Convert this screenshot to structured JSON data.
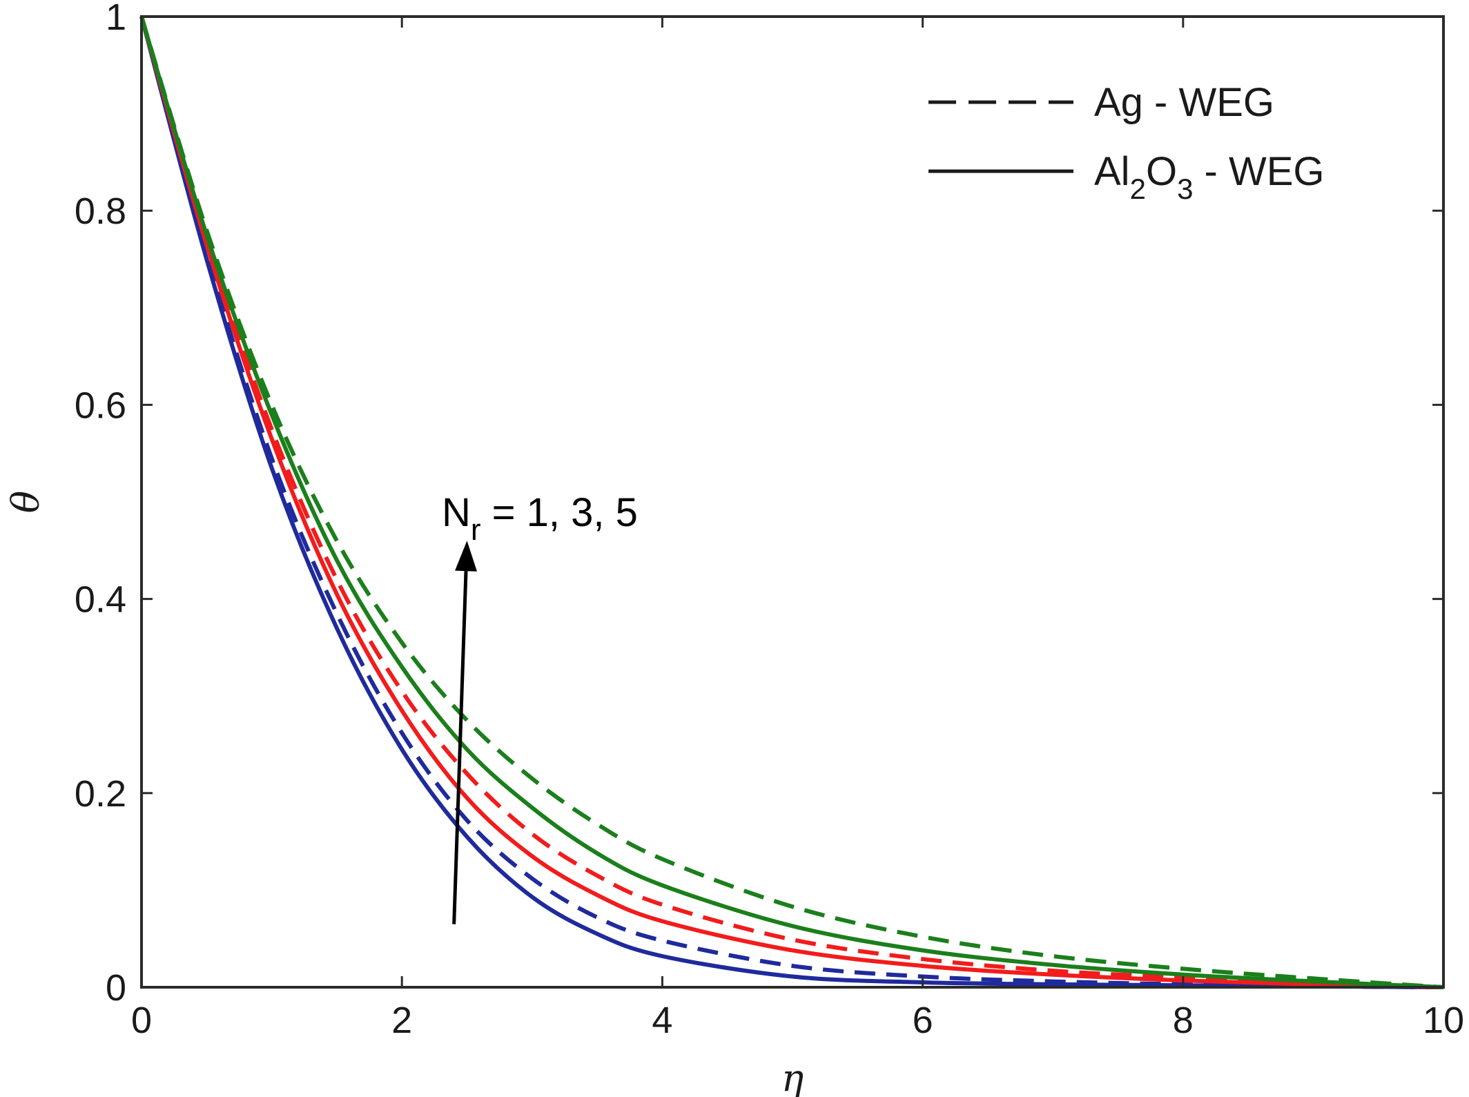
{
  "chart_data": {
    "type": "line",
    "xlabel": "η",
    "ylabel": "θ",
    "xlim": [
      0,
      10
    ],
    "ylim": [
      0,
      1
    ],
    "xticks": [
      "0",
      "2",
      "4",
      "6",
      "8",
      "10"
    ],
    "yticks": [
      "0",
      "0.2",
      "0.4",
      "0.6",
      "0.8",
      "1"
    ],
    "grid": false,
    "legend": {
      "placement": "top-right",
      "entries": [
        {
          "label": "Ag - WEG",
          "style": "dashed"
        },
        {
          "label_main": "Al",
          "label_sub1": "2",
          "label_mid": "O",
          "label_sub2": "3",
          "label_tail": " - WEG",
          "style": "solid"
        }
      ]
    },
    "annotation": {
      "text_main": "N",
      "text_sub": "r",
      "text_tail": " = 1, 3, 5",
      "arrow_from": [
        2.4,
        0.065
      ],
      "arrow_to": [
        2.5,
        0.46
      ]
    },
    "colors": {
      "blue": "#1f2a9c",
      "red": "#f21c1c",
      "green": "#1b7f1b"
    },
    "x": [
      0,
      0.5,
      1,
      1.5,
      2,
      2.5,
      3,
      3.5,
      4,
      5,
      6,
      7,
      8,
      9,
      10
    ],
    "series": [
      {
        "color": "blue",
        "style": "solid",
        "values": [
          1,
          0.75,
          0.535,
          0.37,
          0.245,
          0.155,
          0.093,
          0.055,
          0.032,
          0.011,
          0.005,
          0.003,
          0.002,
          0.001,
          0
        ]
      },
      {
        "color": "blue",
        "style": "dashed",
        "values": [
          1,
          0.755,
          0.545,
          0.385,
          0.262,
          0.172,
          0.112,
          0.072,
          0.048,
          0.022,
          0.011,
          0.006,
          0.003,
          0.001,
          0
        ]
      },
      {
        "color": "red",
        "style": "solid",
        "values": [
          1,
          0.765,
          0.565,
          0.405,
          0.285,
          0.195,
          0.135,
          0.095,
          0.068,
          0.038,
          0.022,
          0.013,
          0.007,
          0.003,
          0
        ]
      },
      {
        "color": "red",
        "style": "dashed",
        "values": [
          1,
          0.77,
          0.575,
          0.42,
          0.305,
          0.22,
          0.158,
          0.115,
          0.085,
          0.049,
          0.029,
          0.017,
          0.01,
          0.004,
          0
        ]
      },
      {
        "color": "green",
        "style": "solid",
        "values": [
          1,
          0.775,
          0.59,
          0.44,
          0.33,
          0.245,
          0.185,
          0.138,
          0.105,
          0.063,
          0.038,
          0.023,
          0.013,
          0.006,
          0
        ]
      },
      {
        "color": "green",
        "style": "dashed",
        "values": [
          1,
          0.78,
          0.6,
          0.46,
          0.355,
          0.275,
          0.215,
          0.168,
          0.132,
          0.083,
          0.052,
          0.032,
          0.019,
          0.009,
          0
        ]
      }
    ]
  }
}
